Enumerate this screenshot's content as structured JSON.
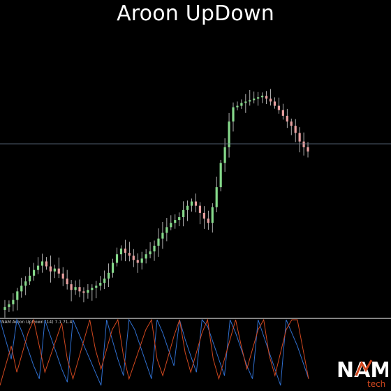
{
  "title": "Aroon UpDown",
  "indicator": {
    "label": "NAM Aroon UpDown (14) 7.1 71.4"
  },
  "logo": {
    "letters": "NAM",
    "sub": "tech"
  },
  "colors": {
    "background": "#000000",
    "bull": "#86d98b",
    "bear": "#e8a0a0",
    "wick": "#d9d9d9",
    "hline": "#6b7a8f",
    "separator": "#cfcfcf",
    "aroon_up": "#2f6fcf",
    "aroon_down": "#d2481f"
  },
  "chart_data": [
    {
      "type": "candlestick",
      "title": "Aroon UpDown",
      "note": "Price series (close) sampled left to right; axis values not printed",
      "close": [
        8,
        12,
        18,
        30,
        38,
        44,
        52,
        60,
        66,
        72,
        65,
        58,
        62,
        55,
        48,
        40,
        32,
        36,
        30,
        28,
        32,
        35,
        38,
        42,
        48,
        56,
        70,
        82,
        90,
        84,
        80,
        74,
        70,
        76,
        82,
        86,
        94,
        104,
        112,
        120,
        126,
        130,
        134,
        144,
        150,
        156,
        150,
        140,
        132,
        126,
        148,
        176,
        210,
        232,
        268,
        288,
        290,
        294,
        296,
        298,
        300,
        302,
        304,
        300,
        296,
        290,
        284,
        276,
        268,
        262,
        252,
        240,
        232,
        226
      ],
      "hline": 206
    },
    {
      "type": "line",
      "name": "NAM Aroon UpDown (14)",
      "ylim": [
        0,
        100
      ],
      "series": [
        {
          "name": "Aroon Up",
          "color": "#2f6fcf",
          "values": [
            100,
            70,
            40,
            100,
            80,
            55,
            30,
            10,
            100,
            75,
            50,
            25,
            5,
            100,
            80,
            60,
            40,
            20,
            0,
            100,
            70,
            40,
            15,
            100,
            85,
            60,
            35,
            10,
            100,
            80,
            55,
            30,
            100,
            70,
            45,
            20,
            100,
            90,
            65,
            40,
            15,
            100,
            80,
            55,
            30,
            10,
            100,
            75,
            50,
            25,
            0,
            100,
            80,
            60,
            35,
            10
          ]
        },
        {
          "name": "Aroon Down",
          "color": "#d2481f",
          "values": [
            0,
            30,
            60,
            20,
            50,
            80,
            100,
            60,
            20,
            45,
            70,
            95,
            40,
            10,
            40,
            70,
            100,
            55,
            25,
            55,
            85,
            100,
            45,
            10,
            35,
            60,
            85,
            100,
            40,
            15,
            45,
            75,
            100,
            50,
            20,
            50,
            80,
            100,
            40,
            10,
            40,
            70,
            100,
            60,
            25,
            55,
            85,
            100,
            45,
            15,
            50,
            85,
            100,
            100,
            55,
            10
          ]
        }
      ]
    }
  ]
}
